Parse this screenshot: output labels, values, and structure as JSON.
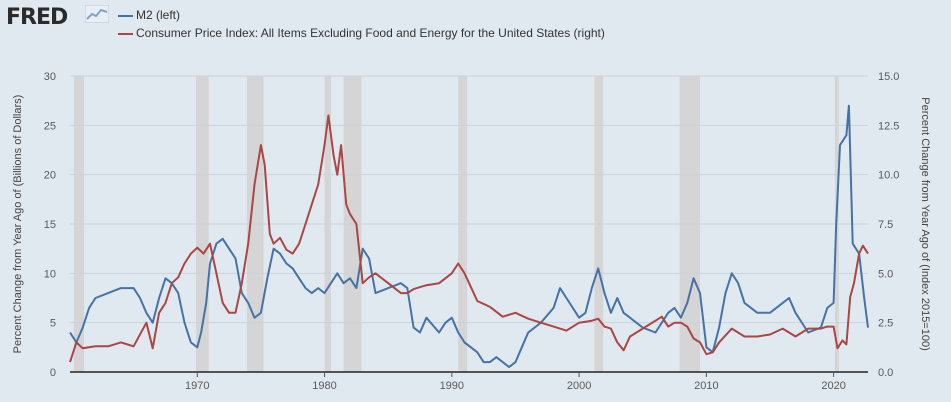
{
  "logo": {
    "text": "FRED",
    "icon": "trend-line-icon"
  },
  "colors": {
    "m2": "#4572a7",
    "cpi": "#aa4643",
    "recession": "#d5d5d5",
    "grid": "#c9d3dc",
    "background": "#e1e9f0",
    "plot": "#e1e9f0"
  },
  "chart_data": {
    "type": "line",
    "title": "",
    "legend": [
      {
        "name": "M2 (left)",
        "color": "#4572a7"
      },
      {
        "name": "Consumer Price Index: All Items Excluding Food and Energy for the United States (right)",
        "color": "#aa4643"
      }
    ],
    "ylabel_left": "Percent Change from Year Ago of (Billions of Dollars)",
    "ylabel_right": "Percent Change from Year Ago of (Index 2015=100)",
    "xlim": [
      1960,
      2022.7
    ],
    "ylim_left": [
      0,
      30
    ],
    "ylim_right": [
      0,
      15
    ],
    "x_ticks": [
      "1970",
      "1980",
      "1990",
      "2000",
      "2010",
      "2020"
    ],
    "y_ticks_left": [
      "0",
      "5",
      "10",
      "15",
      "20",
      "25",
      "30"
    ],
    "y_ticks_right": [
      "0.0",
      "2.5",
      "5.0",
      "7.5",
      "10.0",
      "12.5",
      "15.0"
    ],
    "recessions": [
      [
        1960.3,
        1961.1
      ],
      [
        1969.9,
        1970.9
      ],
      [
        1973.9,
        1975.2
      ],
      [
        1980.0,
        1980.5
      ],
      [
        1981.5,
        1982.9
      ],
      [
        1990.5,
        1991.2
      ],
      [
        2001.2,
        2001.9
      ],
      [
        2007.9,
        2009.5
      ],
      [
        2020.1,
        2020.4
      ]
    ],
    "series": [
      {
        "name": "M2",
        "axis": "left",
        "x": [
          1960.0,
          1960.5,
          1961.0,
          1961.5,
          1962.0,
          1963.0,
          1964.0,
          1965.0,
          1965.5,
          1966.0,
          1966.5,
          1967.0,
          1967.5,
          1968.0,
          1968.5,
          1969.0,
          1969.5,
          1970.0,
          1970.3,
          1970.7,
          1971.0,
          1971.5,
          1972.0,
          1972.5,
          1973.0,
          1973.5,
          1974.0,
          1974.5,
          1975.0,
          1975.5,
          1976.0,
          1976.5,
          1977.0,
          1977.5,
          1978.0,
          1978.5,
          1979.0,
          1979.5,
          1980.0,
          1980.5,
          1981.0,
          1981.5,
          1982.0,
          1982.5,
          1983.0,
          1983.5,
          1984.0,
          1985.0,
          1986.0,
          1986.5,
          1987.0,
          1987.5,
          1988.0,
          1989.0,
          1989.5,
          1990.0,
          1990.5,
          1991.0,
          1991.5,
          1992.0,
          1992.5,
          1993.0,
          1993.5,
          1994.0,
          1994.5,
          1995.0,
          1995.5,
          1996.0,
          1997.0,
          1998.0,
          1998.5,
          1999.0,
          2000.0,
          2000.5,
          2001.0,
          2001.5,
          2002.0,
          2002.5,
          2003.0,
          2003.5,
          2004.0,
          2005.0,
          2006.0,
          2006.5,
          2007.0,
          2007.5,
          2008.0,
          2008.5,
          2009.0,
          2009.5,
          2010.0,
          2010.5,
          2011.0,
          2011.5,
          2012.0,
          2012.5,
          2013.0,
          2014.0,
          2015.0,
          2016.0,
          2016.5,
          2017.0,
          2018.0,
          2019.0,
          2019.5,
          2020.0,
          2020.2,
          2020.5,
          2021.0,
          2021.2,
          2021.5,
          2022.0,
          2022.4,
          2022.7
        ],
        "y": [
          4.0,
          3.0,
          4.5,
          6.5,
          7.5,
          8.0,
          8.5,
          8.5,
          7.5,
          6.0,
          5.0,
          7.5,
          9.5,
          9.0,
          8.0,
          5.0,
          3.0,
          2.5,
          4.0,
          7.0,
          11.0,
          13.0,
          13.5,
          12.5,
          11.5,
          8.0,
          7.0,
          5.5,
          6.0,
          9.5,
          12.5,
          12.0,
          11.0,
          10.5,
          9.5,
          8.5,
          8.0,
          8.5,
          8.0,
          9.0,
          10.0,
          9.0,
          9.5,
          8.5,
          12.5,
          11.5,
          8.0,
          8.5,
          9.0,
          8.5,
          4.5,
          4.0,
          5.5,
          4.0,
          5.0,
          5.5,
          4.0,
          3.0,
          2.5,
          2.0,
          1.0,
          1.0,
          1.5,
          1.0,
          0.5,
          1.0,
          2.5,
          4.0,
          5.0,
          6.5,
          8.5,
          7.5,
          5.5,
          6.0,
          8.5,
          10.5,
          8.0,
          6.0,
          7.5,
          6.0,
          5.5,
          4.5,
          4.0,
          5.0,
          6.0,
          6.5,
          5.5,
          7.0,
          9.5,
          8.0,
          2.5,
          2.0,
          4.5,
          8.0,
          10.0,
          9.0,
          7.0,
          6.0,
          6.0,
          7.0,
          7.5,
          6.0,
          4.0,
          4.5,
          6.5,
          7.0,
          15.0,
          23.0,
          24.0,
          27.0,
          13.0,
          12.0,
          7.5,
          4.5
        ]
      },
      {
        "name": "Consumer Price Index: All Items Excluding Food and Energy for the United States",
        "axis": "right",
        "x": [
          1960.0,
          1960.5,
          1961.0,
          1962.0,
          1963.0,
          1964.0,
          1965.0,
          1966.0,
          1966.5,
          1967.0,
          1967.5,
          1968.0,
          1968.5,
          1969.0,
          1969.5,
          1970.0,
          1970.5,
          1971.0,
          1971.5,
          1972.0,
          1972.5,
          1973.0,
          1973.5,
          1974.0,
          1974.5,
          1975.0,
          1975.3,
          1975.7,
          1976.0,
          1976.5,
          1977.0,
          1977.5,
          1978.0,
          1978.5,
          1979.0,
          1979.5,
          1980.0,
          1980.3,
          1980.7,
          1981.0,
          1981.3,
          1981.7,
          1982.0,
          1982.5,
          1983.0,
          1983.5,
          1984.0,
          1985.0,
          1986.0,
          1986.5,
          1987.0,
          1988.0,
          1989.0,
          1990.0,
          1990.5,
          1991.0,
          1991.5,
          1992.0,
          1993.0,
          1994.0,
          1995.0,
          1996.0,
          1997.0,
          1998.0,
          1999.0,
          2000.0,
          2001.0,
          2001.5,
          2002.0,
          2002.5,
          2003.0,
          2003.5,
          2004.0,
          2005.0,
          2006.0,
          2006.5,
          2007.0,
          2007.5,
          2008.0,
          2008.5,
          2009.0,
          2009.5,
          2010.0,
          2010.5,
          2011.0,
          2012.0,
          2013.0,
          2014.0,
          2015.0,
          2016.0,
          2017.0,
          2018.0,
          2019.0,
          2019.5,
          2020.0,
          2020.3,
          2020.7,
          2021.0,
          2021.3,
          2021.6,
          2022.0,
          2022.3,
          2022.7
        ],
        "y": [
          0.5,
          1.5,
          1.2,
          1.3,
          1.3,
          1.5,
          1.3,
          2.5,
          1.2,
          3.0,
          3.5,
          4.5,
          4.8,
          5.5,
          6.0,
          6.3,
          6.0,
          6.5,
          5.0,
          3.5,
          3.0,
          3.0,
          4.5,
          6.5,
          9.5,
          11.5,
          10.5,
          7.0,
          6.5,
          6.8,
          6.2,
          6.0,
          6.5,
          7.5,
          8.5,
          9.5,
          11.5,
          13.0,
          11.0,
          10.0,
          11.5,
          8.5,
          8.0,
          7.5,
          4.5,
          4.8,
          5.0,
          4.5,
          4.0,
          4.0,
          4.2,
          4.4,
          4.5,
          5.0,
          5.5,
          5.0,
          4.3,
          3.6,
          3.3,
          2.8,
          3.0,
          2.7,
          2.5,
          2.3,
          2.1,
          2.5,
          2.6,
          2.7,
          2.3,
          2.2,
          1.5,
          1.1,
          1.8,
          2.2,
          2.6,
          2.8,
          2.3,
          2.5,
          2.5,
          2.3,
          1.7,
          1.5,
          0.9,
          1.0,
          1.5,
          2.2,
          1.8,
          1.8,
          1.9,
          2.2,
          1.8,
          2.2,
          2.2,
          2.3,
          2.3,
          1.2,
          1.6,
          1.4,
          3.8,
          4.5,
          6.0,
          6.4,
          6.0
        ]
      }
    ]
  }
}
